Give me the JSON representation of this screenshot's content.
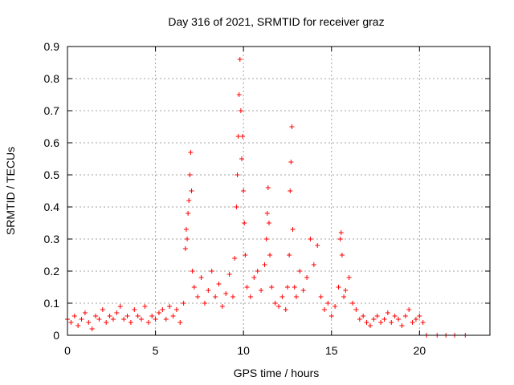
{
  "chart_data": {
    "type": "scatter",
    "title": "Day 316 of 2021, SRMTID for receiver graz",
    "xlabel": "GPS time / hours",
    "ylabel": "SRMTID / TECUs",
    "xlim": [
      0,
      24
    ],
    "ylim": [
      0,
      0.9
    ],
    "xticks": [
      0,
      5,
      10,
      15,
      20
    ],
    "xtick_labels": [
      "0",
      "5",
      "10",
      "15",
      "20"
    ],
    "yticks": [
      0,
      0.1,
      0.2,
      0.3,
      0.4,
      0.5,
      0.6,
      0.7,
      0.8,
      0.9
    ],
    "ytick_labels": [
      "0",
      "0.1",
      "0.2",
      "0.3",
      "0.4",
      "0.5",
      "0.6",
      "0.7",
      "0.8",
      "0.9"
    ],
    "grid": true,
    "marker": "+",
    "color": "#ff0000",
    "series": [
      {
        "name": "SRMTID",
        "points": [
          [
            0.0,
            0.05
          ],
          [
            0.2,
            0.04
          ],
          [
            0.4,
            0.06
          ],
          [
            0.6,
            0.03
          ],
          [
            0.8,
            0.05
          ],
          [
            1.0,
            0.07
          ],
          [
            1.2,
            0.04
          ],
          [
            1.4,
            0.02
          ],
          [
            1.6,
            0.06
          ],
          [
            1.8,
            0.05
          ],
          [
            2.0,
            0.08
          ],
          [
            2.2,
            0.04
          ],
          [
            2.4,
            0.06
          ],
          [
            2.6,
            0.05
          ],
          [
            2.8,
            0.07
          ],
          [
            3.0,
            0.09
          ],
          [
            3.2,
            0.05
          ],
          [
            3.4,
            0.06
          ],
          [
            3.6,
            0.04
          ],
          [
            3.8,
            0.08
          ],
          [
            4.0,
            0.06
          ],
          [
            4.2,
            0.05
          ],
          [
            4.4,
            0.09
          ],
          [
            4.6,
            0.04
          ],
          [
            4.8,
            0.06
          ],
          [
            5.0,
            0.05
          ],
          [
            5.2,
            0.07
          ],
          [
            5.4,
            0.08
          ],
          [
            5.6,
            0.05
          ],
          [
            5.8,
            0.09
          ],
          [
            6.0,
            0.06
          ],
          [
            6.2,
            0.08
          ],
          [
            6.4,
            0.04
          ],
          [
            6.6,
            0.1
          ],
          [
            6.7,
            0.27
          ],
          [
            6.75,
            0.33
          ],
          [
            6.8,
            0.3
          ],
          [
            6.85,
            0.38
          ],
          [
            6.9,
            0.42
          ],
          [
            6.95,
            0.5
          ],
          [
            7.0,
            0.57
          ],
          [
            7.05,
            0.45
          ],
          [
            7.1,
            0.2
          ],
          [
            7.2,
            0.15
          ],
          [
            7.4,
            0.12
          ],
          [
            7.6,
            0.18
          ],
          [
            7.8,
            0.1
          ],
          [
            8.0,
            0.14
          ],
          [
            8.2,
            0.2
          ],
          [
            8.4,
            0.12
          ],
          [
            8.6,
            0.16
          ],
          [
            8.8,
            0.09
          ],
          [
            9.0,
            0.13
          ],
          [
            9.2,
            0.19
          ],
          [
            9.4,
            0.12
          ],
          [
            9.5,
            0.24
          ],
          [
            9.6,
            0.4
          ],
          [
            9.65,
            0.5
          ],
          [
            9.7,
            0.62
          ],
          [
            9.75,
            0.75
          ],
          [
            9.8,
            0.86
          ],
          [
            9.85,
            0.7
          ],
          [
            9.9,
            0.55
          ],
          [
            9.95,
            0.62
          ],
          [
            10.0,
            0.45
          ],
          [
            10.05,
            0.35
          ],
          [
            10.1,
            0.25
          ],
          [
            10.2,
            0.15
          ],
          [
            10.4,
            0.12
          ],
          [
            10.6,
            0.18
          ],
          [
            10.8,
            0.2
          ],
          [
            11.0,
            0.14
          ],
          [
            11.2,
            0.22
          ],
          [
            11.3,
            0.3
          ],
          [
            11.35,
            0.38
          ],
          [
            11.4,
            0.46
          ],
          [
            11.45,
            0.35
          ],
          [
            11.5,
            0.25
          ],
          [
            11.6,
            0.15
          ],
          [
            11.8,
            0.1
          ],
          [
            12.0,
            0.09
          ],
          [
            12.2,
            0.12
          ],
          [
            12.4,
            0.08
          ],
          [
            12.5,
            0.15
          ],
          [
            12.6,
            0.25
          ],
          [
            12.65,
            0.45
          ],
          [
            12.7,
            0.54
          ],
          [
            12.75,
            0.65
          ],
          [
            12.8,
            0.33
          ],
          [
            12.9,
            0.15
          ],
          [
            13.0,
            0.12
          ],
          [
            13.2,
            0.2
          ],
          [
            13.4,
            0.14
          ],
          [
            13.6,
            0.18
          ],
          [
            13.8,
            0.3
          ],
          [
            14.0,
            0.22
          ],
          [
            14.2,
            0.28
          ],
          [
            14.4,
            0.12
          ],
          [
            14.6,
            0.08
          ],
          [
            14.8,
            0.1
          ],
          [
            15.0,
            0.06
          ],
          [
            15.2,
            0.09
          ],
          [
            15.4,
            0.15
          ],
          [
            15.5,
            0.3
          ],
          [
            15.55,
            0.32
          ],
          [
            15.6,
            0.25
          ],
          [
            15.7,
            0.12
          ],
          [
            15.8,
            0.14
          ],
          [
            16.0,
            0.18
          ],
          [
            16.2,
            0.1
          ],
          [
            16.4,
            0.08
          ],
          [
            16.6,
            0.05
          ],
          [
            16.8,
            0.06
          ],
          [
            17.0,
            0.04
          ],
          [
            17.2,
            0.03
          ],
          [
            17.4,
            0.05
          ],
          [
            17.6,
            0.06
          ],
          [
            17.8,
            0.04
          ],
          [
            18.0,
            0.05
          ],
          [
            18.2,
            0.07
          ],
          [
            18.4,
            0.04
          ],
          [
            18.6,
            0.06
          ],
          [
            18.8,
            0.05
          ],
          [
            19.0,
            0.03
          ],
          [
            19.2,
            0.06
          ],
          [
            19.4,
            0.08
          ],
          [
            19.6,
            0.04
          ],
          [
            19.8,
            0.05
          ],
          [
            20.0,
            0.06
          ],
          [
            20.2,
            0.04
          ],
          [
            20.4,
            0.0
          ],
          [
            21.0,
            0.0
          ],
          [
            21.5,
            0.0
          ],
          [
            22.0,
            0.0
          ],
          [
            22.6,
            0.0
          ]
        ]
      }
    ]
  }
}
